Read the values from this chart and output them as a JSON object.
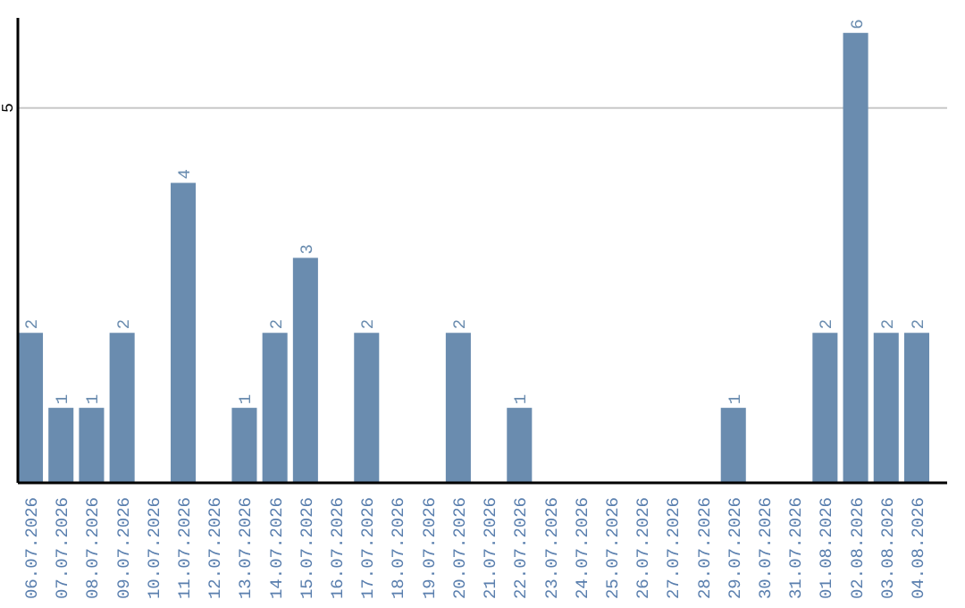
{
  "chart_data": {
    "type": "bar",
    "categories": [
      "06.07.2026",
      "07.07.2026",
      "08.07.2026",
      "09.07.2026",
      "10.07.2026",
      "11.07.2026",
      "12.07.2026",
      "13.07.2026",
      "14.07.2026",
      "15.07.2026",
      "16.07.2026",
      "17.07.2026",
      "18.07.2026",
      "19.07.2026",
      "20.07.2026",
      "21.07.2026",
      "22.07.2026",
      "23.07.2026",
      "24.07.2026",
      "25.07.2026",
      "26.07.2026",
      "27.07.2026",
      "28.07.2026",
      "29.07.2026",
      "30.07.2026",
      "31.07.2026",
      "01.08.2026",
      "02.08.2026",
      "03.08.2026",
      "04.08.2026"
    ],
    "values": [
      2,
      1,
      1,
      2,
      0,
      4,
      0,
      1,
      2,
      3,
      0,
      2,
      0,
      0,
      2,
      0,
      1,
      0,
      0,
      0,
      0,
      0,
      0,
      1,
      0,
      0,
      2,
      6,
      2,
      2
    ],
    "value_labels": [
      "2",
      "1",
      "1",
      "2",
      null,
      "4",
      null,
      "1",
      "2",
      "3",
      null,
      "2",
      null,
      null,
      "2",
      null,
      "1",
      null,
      null,
      null,
      null,
      null,
      null,
      "1",
      null,
      null,
      "2",
      "6",
      "2",
      "2"
    ],
    "color": "#6a8caf",
    "ylim": [
      0,
      6.2
    ],
    "yticks": [
      5
    ],
    "grid": "y"
  }
}
